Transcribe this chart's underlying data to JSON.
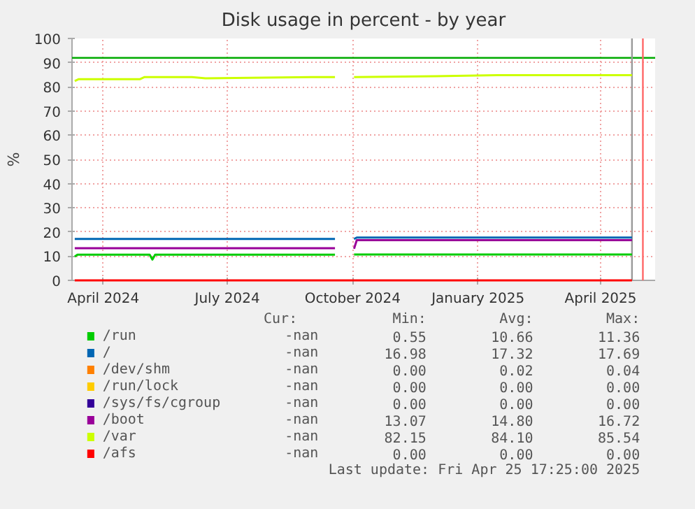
{
  "chart_data": {
    "type": "line",
    "title": "Disk usage in percent - by year",
    "ylabel": "%",
    "xlim": [
      "2024-03-09",
      "2025-05-11"
    ],
    "ylim": [
      0,
      100
    ],
    "xticks": [
      {
        "value": "2024-04-01",
        "label": "April 2024"
      },
      {
        "value": "2024-07-01",
        "label": "July 2024"
      },
      {
        "value": "2024-10-01",
        "label": "October 2024"
      },
      {
        "value": "2025-01-01",
        "label": "January 2025"
      },
      {
        "value": "2025-04-01",
        "label": "April 2025"
      }
    ],
    "yticks": [
      0,
      10,
      20,
      30,
      40,
      50,
      60,
      70,
      80,
      90,
      100
    ],
    "grid": true,
    "legend": "bottom",
    "marker": "none",
    "line_style": "solid",
    "series": [
      {
        "name": "/run",
        "color": "#00cc00",
        "x": [
          "2024-03-11",
          "2024-03-13",
          "2024-05-05",
          "2024-05-07",
          "2024-05-09",
          "2024-09-18",
          "2024-09-25",
          "2024-10-02",
          "2025-04-24"
        ],
        "values": [
          9.8,
          10.6,
          10.6,
          8.6,
          10.6,
          10.6,
          null,
          10.7,
          10.7
        ]
      },
      {
        "name": "/",
        "color": "#0066b3",
        "x": [
          "2024-03-11",
          "2024-09-18",
          "2024-09-25",
          "2024-10-02",
          "2024-10-04",
          "2025-04-24"
        ],
        "values": [
          17.1,
          17.1,
          null,
          17.1,
          17.7,
          17.7
        ]
      },
      {
        "name": "/dev/shm",
        "color": "#ff8000"
      },
      {
        "name": "/run/lock",
        "color": "#ffcc00"
      },
      {
        "name": "/sys/fs/cgroup",
        "color": "#330099"
      },
      {
        "name": "/boot",
        "color": "#990099",
        "x": [
          "2024-03-11",
          "2024-09-18",
          "2024-09-25",
          "2024-10-02",
          "2024-10-04",
          "2025-04-24"
        ],
        "values": [
          13.3,
          13.3,
          null,
          13.1,
          16.6,
          16.6
        ]
      },
      {
        "name": "/var",
        "color": "#ccff00",
        "x": [
          "2024-03-11",
          "2024-03-14",
          "2024-04-28",
          "2024-05-01",
          "2024-06-05",
          "2024-06-15",
          "2024-09-01",
          "2024-09-18",
          "2024-09-25",
          "2024-10-02",
          "2024-12-01",
          "2025-01-15",
          "2025-04-24"
        ],
        "values": [
          82.4,
          83.2,
          83.2,
          84.0,
          84.0,
          83.5,
          84.0,
          84.0,
          null,
          84.0,
          84.4,
          84.8,
          84.8
        ]
      },
      {
        "name": "/afs",
        "color": "#ff0000",
        "x": [
          "2024-03-11",
          "2025-04-24"
        ],
        "values": [
          0,
          0
        ]
      }
    ],
    "ref_lines": [
      {
        "axis": "y",
        "value": 92,
        "color": "#00aa00"
      },
      {
        "axis": "x",
        "value": "2025-04-24",
        "color": "#999999"
      },
      {
        "axis": "x",
        "value": "2025-05-02",
        "color": "#ff6666"
      }
    ],
    "annotations": [
      "Cur:",
      "Min:",
      "Avg:",
      "Max:",
      "-nan",
      "0.55",
      "10.66",
      "11.36",
      "-nan",
      "16.98",
      "17.32",
      "17.69",
      "-nan",
      "0.00",
      "0.02",
      "0.04",
      "-nan",
      "0.00",
      "0.00",
      "0.00",
      "-nan",
      "0.00",
      "0.00",
      "0.00",
      "-nan",
      "13.07",
      "14.80",
      "16.72",
      "-nan",
      "82.15",
      "84.10",
      "85.54",
      "-nan",
      "0.00",
      "0.00",
      "0.00",
      "Last update: Fri Apr 25 17:25:00 2025"
    ]
  }
}
